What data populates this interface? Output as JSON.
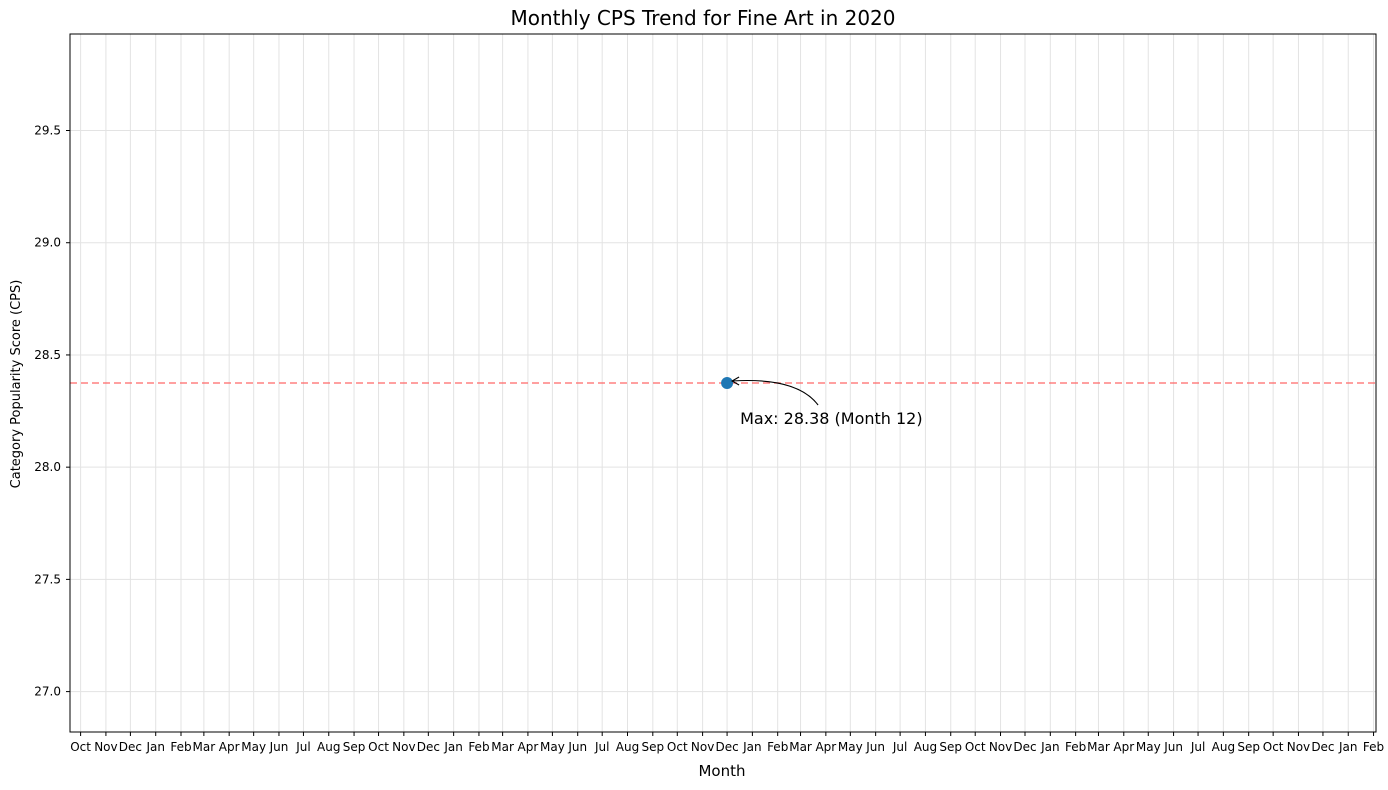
{
  "chart_data": {
    "type": "line",
    "title": "Monthly CPS Trend for Fine Art in 2020",
    "xlabel": "Month",
    "ylabel": "Category Popularity Score (CPS)",
    "x_tick_labels": [
      "Oct",
      "Nov",
      "Dec",
      "Jan",
      "Feb",
      "Mar",
      "Apr",
      "May",
      "Jun",
      "Jul",
      "Aug",
      "Sep",
      "Oct",
      "Nov",
      "Dec",
      "Jan",
      "Feb",
      "Mar",
      "Apr",
      "May",
      "Jun",
      "Jul",
      "Aug",
      "Sep",
      "Oct",
      "Nov",
      "Dec",
      "Jan",
      "Feb",
      "Mar",
      "Apr",
      "May",
      "Jun",
      "Jul",
      "Aug",
      "Sep",
      "Oct",
      "Nov",
      "Dec",
      "Jan",
      "Feb",
      "Mar",
      "Apr",
      "May",
      "Jun",
      "Jul",
      "Aug",
      "Sep",
      "Oct",
      "Nov",
      "Dec",
      "Jan",
      "Feb"
    ],
    "x_tick_dates": [
      "2018-10",
      "2018-11",
      "2018-12",
      "2019-01",
      "2019-02",
      "2019-03",
      "2019-04",
      "2019-05",
      "2019-06",
      "2019-07",
      "2019-08",
      "2019-09",
      "2019-10",
      "2019-11",
      "2019-12",
      "2020-01",
      "2020-02",
      "2020-03",
      "2020-04",
      "2020-05",
      "2020-06",
      "2020-07",
      "2020-08",
      "2020-09",
      "2020-10",
      "2020-11",
      "2020-12",
      "2021-01",
      "2021-02",
      "2021-03",
      "2021-04",
      "2021-05",
      "2021-06",
      "2021-07",
      "2021-08",
      "2021-09",
      "2021-10",
      "2021-11",
      "2021-12",
      "2022-01",
      "2022-02",
      "2022-03",
      "2022-04",
      "2022-05",
      "2022-06",
      "2022-07",
      "2022-08",
      "2022-09",
      "2022-10",
      "2022-11",
      "2022-12",
      "2023-01",
      "2023-02"
    ],
    "y_ticks": [
      27.0,
      27.5,
      28.0,
      28.5,
      29.0,
      29.5
    ],
    "ylim": [
      26.82,
      29.93
    ],
    "xlim": [
      "2018-09-18",
      "2023-02-04"
    ],
    "grid": true,
    "series": [
      {
        "x": [
          "2020-12"
        ],
        "values": [
          28.375
        ],
        "color": "#1f77b4"
      }
    ],
    "reference_line": {
      "value": 28.375,
      "color": "#ff6b6b",
      "style": "dashed"
    },
    "annotation": {
      "text": "Max: 28.38 (Month 12)",
      "x": "2020-12",
      "y": 28.375
    }
  }
}
